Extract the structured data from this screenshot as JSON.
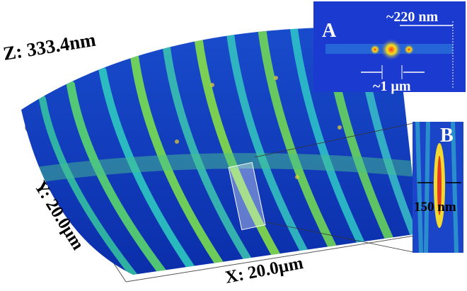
{
  "axes": {
    "z_label": "Z: 333.4nm",
    "y_label": "Y: 20.0µm",
    "x_label": "X: 20.0µm"
  },
  "inset_a": {
    "label": "A",
    "period": "~220 nm",
    "spacing": "~1 µm"
  },
  "inset_b": {
    "label": "B",
    "width": "150 nm"
  }
}
